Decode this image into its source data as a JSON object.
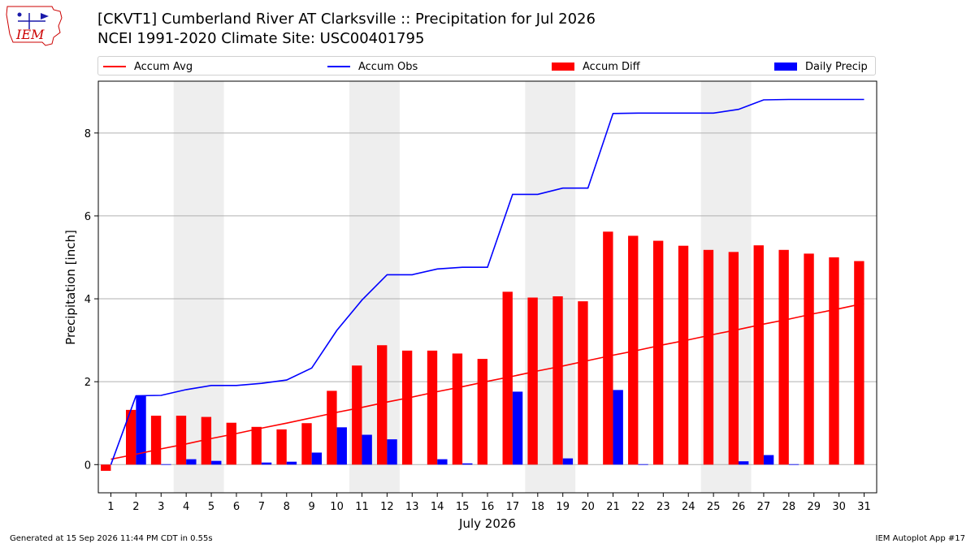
{
  "logo": {
    "text": "IEM",
    "colors": {
      "text": "#cc0000",
      "outline": "#cc0000",
      "icon": "#1a1aaa"
    }
  },
  "header": {
    "title_line1": "[CKVT1] Cumberland River  AT Clarksville :: Precipitation for Jul 2026",
    "title_line2": "NCEI 1991-2020 Climate Site: USC00401795"
  },
  "legend": {
    "accum_avg": "Accum Avg",
    "accum_obs": "Accum Obs",
    "accum_diff": "Accum Diff",
    "daily_precip": "Daily Precip"
  },
  "footer": {
    "left": "Generated at 15 Sep 2026 11:44 PM CDT in 0.55s",
    "right": "IEM Autoplot App #17"
  },
  "colors": {
    "avg": "#ff0000",
    "obs": "#0000ff",
    "diff": "#ff0000",
    "daily": "#0000ff",
    "weekend": "#eeeeee",
    "grid": "#b0b0b0"
  },
  "chart_data": {
    "type": "bar",
    "xlabel": "July 2026",
    "ylabel": "Precipitation [inch]",
    "x": [
      1,
      2,
      3,
      4,
      5,
      6,
      7,
      8,
      9,
      10,
      11,
      12,
      13,
      14,
      15,
      16,
      17,
      18,
      19,
      20,
      21,
      22,
      23,
      24,
      25,
      26,
      27,
      28,
      29,
      30,
      31
    ],
    "xlim": [
      0.5,
      31.5
    ],
    "ylim": [
      -0.68,
      9.25
    ],
    "yticks": [
      0,
      2,
      4,
      6,
      8
    ],
    "grid": true,
    "legend_position": "top",
    "weekend_shading": [
      [
        3.5,
        5.5
      ],
      [
        10.5,
        12.5
      ],
      [
        17.5,
        19.5
      ],
      [
        24.5,
        26.5
      ]
    ],
    "series": [
      {
        "name": "Accum Avg",
        "kind": "line",
        "values": [
          0.13,
          0.25,
          0.38,
          0.5,
          0.63,
          0.75,
          0.88,
          1.0,
          1.13,
          1.26,
          1.38,
          1.51,
          1.63,
          1.76,
          1.88,
          2.01,
          2.13,
          2.26,
          2.38,
          2.51,
          2.64,
          2.76,
          2.89,
          3.01,
          3.14,
          3.26,
          3.39,
          3.51,
          3.64,
          3.76,
          3.89
        ]
      },
      {
        "name": "Accum Obs",
        "kind": "line",
        "values": [
          0.0,
          1.66,
          1.67,
          1.81,
          1.91,
          1.91,
          1.96,
          2.04,
          2.33,
          3.24,
          3.97,
          4.58,
          4.58,
          4.72,
          4.76,
          4.76,
          6.52,
          6.52,
          6.67,
          6.67,
          8.47,
          8.48,
          8.48,
          8.48,
          8.48,
          8.57,
          8.8,
          8.81,
          8.81,
          8.81,
          8.81
        ]
      },
      {
        "name": "Accum Diff",
        "kind": "bar",
        "values": [
          -0.15,
          1.32,
          1.18,
          1.18,
          1.15,
          1.01,
          0.91,
          0.85,
          1.0,
          1.78,
          2.39,
          2.88,
          2.75,
          2.75,
          2.68,
          2.55,
          4.17,
          4.03,
          4.06,
          3.94,
          5.62,
          5.52,
          5.4,
          5.28,
          5.18,
          5.13,
          5.29,
          5.18,
          5.09,
          5.0,
          4.91
        ]
      },
      {
        "name": "Daily Precip",
        "kind": "bar",
        "values": [
          0.0,
          1.65,
          0.01,
          0.13,
          0.09,
          0.0,
          0.05,
          0.07,
          0.29,
          0.9,
          0.72,
          0.61,
          0.0,
          0.13,
          0.03,
          0.0,
          1.76,
          0.0,
          0.15,
          0.0,
          1.8,
          0.01,
          0.0,
          0.0,
          0.0,
          0.08,
          0.23,
          0.01,
          0.0,
          0.0,
          0.0
        ]
      }
    ]
  }
}
